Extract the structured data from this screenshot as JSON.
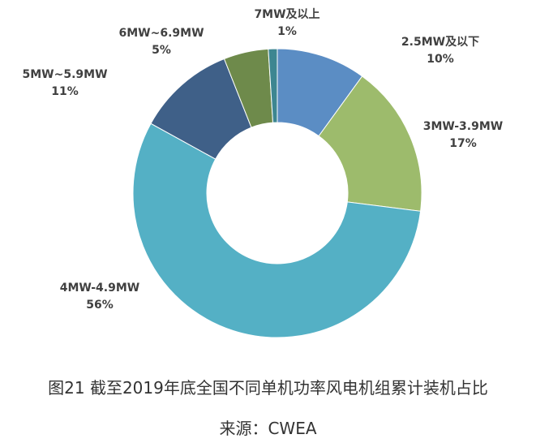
{
  "chart_data": {
    "type": "pie",
    "donut": true,
    "slices": [
      {
        "name": "2.5MW及以下",
        "value": 10,
        "label": "10%",
        "color": "#5b8dc4"
      },
      {
        "name": "3MW-3.9MW",
        "value": 17,
        "label": "17%",
        "color": "#9dbb6c"
      },
      {
        "name": "4MW-4.9MW",
        "value": 56,
        "label": "56%",
        "color": "#54b0c5"
      },
      {
        "name": "5MW~5.9MW",
        "value": 11,
        "label": "11%",
        "color": "#3f6088"
      },
      {
        "name": "6MW~6.9MW",
        "value": 5,
        "label": "5%",
        "color": "#6e8a4b"
      },
      {
        "name": "7MW及以上",
        "value": 1,
        "label": "1%",
        "color": "#3d8691"
      }
    ]
  },
  "caption": {
    "title": "图21  截至2019年底全国不同单机功率风电机组累计装机占比",
    "source": "来源：CWEA"
  }
}
